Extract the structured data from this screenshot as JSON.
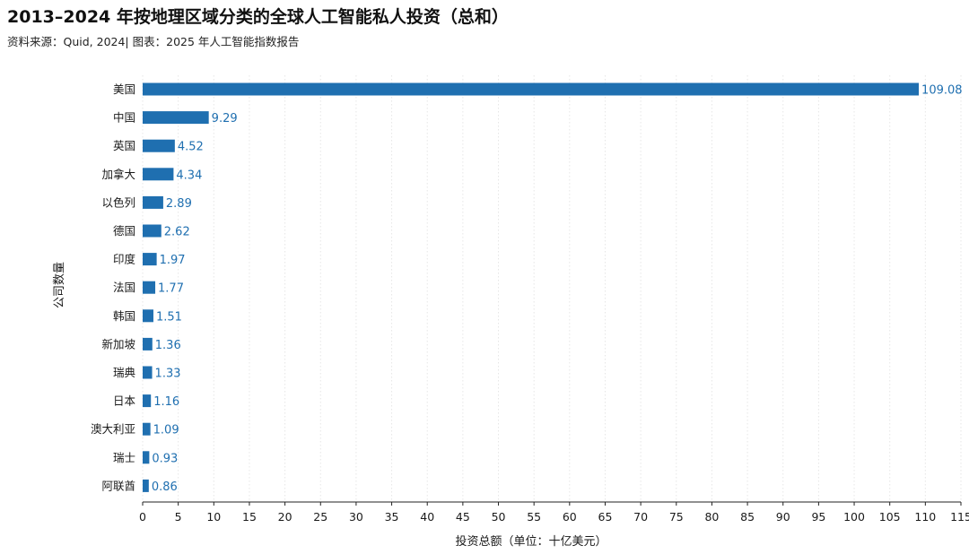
{
  "header": {
    "title": "2013–2024 年按地理区域分类的全球人工智能私人投资（总和）",
    "source": "资料来源：Quid, 2024| 图表：2025 年人工智能指数报告"
  },
  "chart_data": {
    "type": "bar",
    "orientation": "horizontal",
    "categories": [
      "美国",
      "中国",
      "英国",
      "加拿大",
      "以色列",
      "德国",
      "印度",
      "法国",
      "韩国",
      "新加坡",
      "瑞典",
      "日本",
      "澳大利亚",
      "瑞士",
      "阿联酋"
    ],
    "values": [
      109.08,
      9.29,
      4.52,
      4.34,
      2.89,
      2.62,
      1.97,
      1.77,
      1.51,
      1.36,
      1.33,
      1.16,
      1.09,
      0.93,
      0.86
    ],
    "value_labels": [
      "109.08",
      "9.29",
      "4.52",
      "4.34",
      "2.89",
      "2.62",
      "1.97",
      "1.77",
      "1.51",
      "1.36",
      "1.33",
      "1.16",
      "1.09",
      "0.93",
      "0.86"
    ],
    "xlabel": "投资总额（单位：十亿美元）",
    "ylabel": "公司数量",
    "xlim": [
      0,
      115
    ],
    "xticks": [
      0,
      5,
      10,
      15,
      20,
      25,
      30,
      35,
      40,
      45,
      50,
      55,
      60,
      65,
      70,
      75,
      80,
      85,
      90,
      95,
      100,
      105,
      110,
      115
    ],
    "grid": true,
    "bar_color": "#1f6fb0",
    "label_color": "#1f6fb0"
  }
}
